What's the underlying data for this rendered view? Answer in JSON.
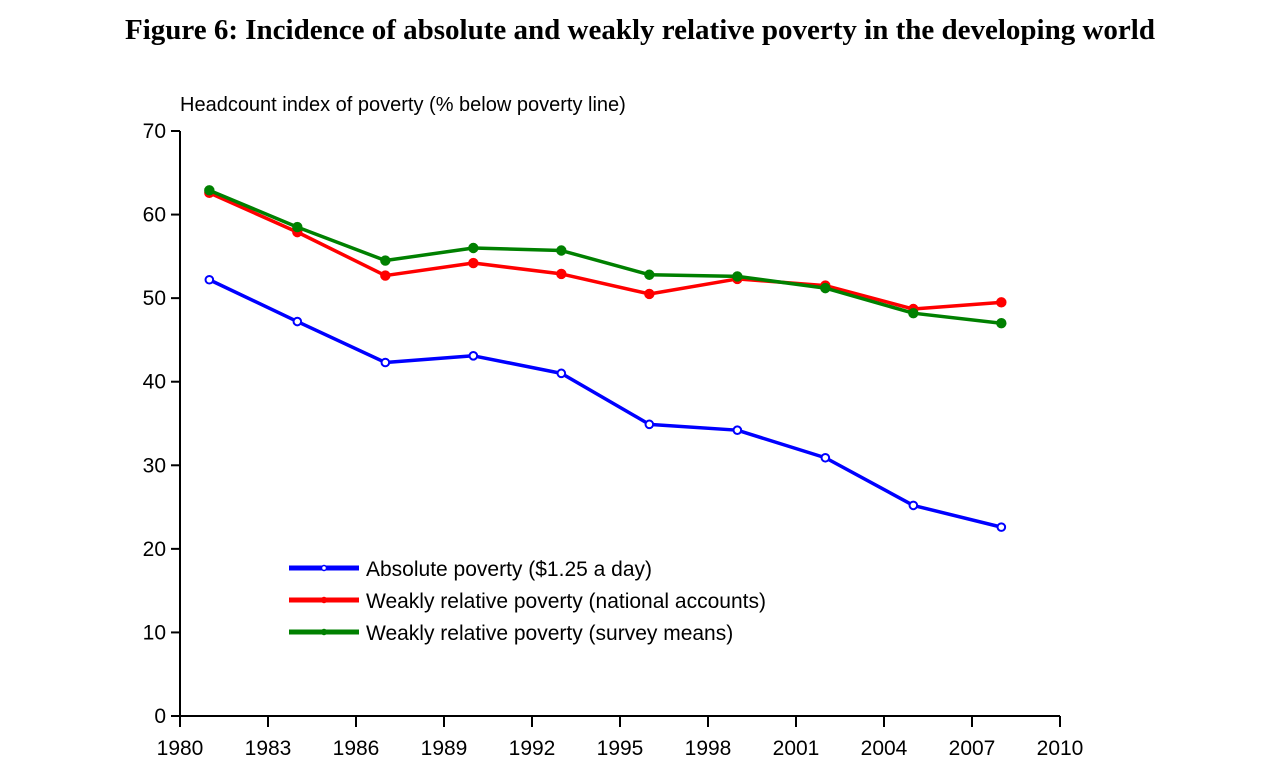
{
  "chart_data": {
    "type": "line",
    "title": "Figure 6: Incidence of absolute and weakly relative poverty in the developing world",
    "xlabel": "",
    "ylabel": "Headcount index of poverty (% below poverty line)",
    "xlim": [
      1980,
      2010
    ],
    "ylim": [
      0,
      70
    ],
    "x_ticks": [
      1980,
      1983,
      1986,
      1989,
      1992,
      1995,
      1998,
      2001,
      2004,
      2007,
      2010
    ],
    "y_ticks": [
      0,
      10,
      20,
      30,
      40,
      50,
      60,
      70
    ],
    "grid": false,
    "legend_position": "bottom-left",
    "x": [
      1981,
      1984,
      1987,
      1990,
      1993,
      1996,
      1999,
      2002,
      2005,
      2008
    ],
    "series": [
      {
        "name": "Absolute poverty ($1.25 a day)",
        "color": "#0000ff",
        "marker": "open-circle",
        "values": [
          52.2,
          47.2,
          42.3,
          43.1,
          41.0,
          34.9,
          34.2,
          30.9,
          25.2,
          22.6
        ]
      },
      {
        "name": "Weakly relative poverty (national accounts)",
        "color": "#ff0000",
        "marker": "filled-circle",
        "values": [
          62.6,
          57.9,
          52.7,
          54.2,
          52.9,
          50.5,
          52.3,
          51.5,
          48.7,
          49.5
        ]
      },
      {
        "name": "Weakly relative poverty (survey means)",
        "color": "#008000",
        "marker": "filled-circle",
        "values": [
          62.9,
          58.5,
          54.5,
          56.0,
          55.7,
          52.8,
          52.6,
          51.2,
          48.2,
          47.0
        ]
      }
    ]
  }
}
